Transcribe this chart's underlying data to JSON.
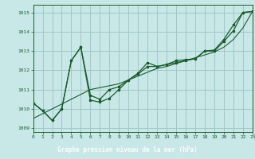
{
  "xlabel": "Graphe pression niveau de la mer (hPa)",
  "bg_color": "#c8e8e8",
  "grid_color": "#a0c8c8",
  "line_color": "#1a5c2a",
  "footer_bg": "#2a6e2a",
  "footer_text_color": "#ffffff",
  "xlim": [
    0,
    23
  ],
  "ylim": [
    1008.8,
    1015.4
  ],
  "yticks": [
    1009,
    1010,
    1011,
    1012,
    1013,
    1014,
    1015
  ],
  "xticks": [
    0,
    1,
    2,
    3,
    4,
    5,
    6,
    7,
    8,
    9,
    10,
    11,
    12,
    13,
    14,
    15,
    16,
    17,
    18,
    19,
    20,
    21,
    22,
    23
  ],
  "series1": [
    1010.3,
    1009.9,
    1009.4,
    1010.0,
    1012.5,
    1013.2,
    1010.7,
    1010.5,
    1011.0,
    1011.15,
    1011.5,
    1011.85,
    1012.4,
    1012.2,
    1012.3,
    1012.5,
    1012.55,
    1012.6,
    1013.0,
    1013.05,
    1013.6,
    1014.35,
    1015.0,
    1015.05
  ],
  "series2": [
    1010.3,
    1009.9,
    1009.4,
    1010.0,
    1012.5,
    1013.2,
    1010.45,
    1010.35,
    1010.55,
    1011.0,
    1011.5,
    1011.8,
    1012.2,
    1012.2,
    1012.3,
    1012.4,
    1012.5,
    1012.6,
    1013.0,
    1013.0,
    1013.5,
    1014.05,
    1015.0,
    1015.05
  ],
  "trend": [
    1009.5,
    1009.75,
    1010.0,
    1010.25,
    1010.5,
    1010.75,
    1011.0,
    1011.1,
    1011.2,
    1011.3,
    1011.5,
    1011.7,
    1011.9,
    1012.1,
    1012.2,
    1012.35,
    1012.5,
    1012.65,
    1012.8,
    1012.95,
    1013.2,
    1013.6,
    1014.2,
    1015.05
  ]
}
